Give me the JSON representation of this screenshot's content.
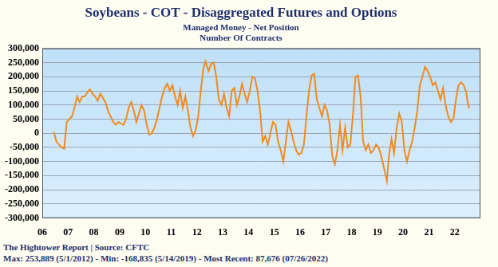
{
  "chart_data": {
    "type": "line",
    "title": "Soybeans - COT - Disaggregated Futures and Options",
    "subtitle": [
      "Managed Money - Net Position",
      "Number Of Contracts"
    ],
    "footer": [
      "The Hightower Report | Source: CFTC",
      "Max: 253,889 (5/1/2012) - Min: -168,835 (5/14/2019) - Most Recent: 87,676 (07/26/2022)"
    ],
    "color": "#f28a1e",
    "grid": true,
    "x": [
      2006.45,
      2006.55,
      2006.65,
      2006.75,
      2006.85,
      2006.95,
      2007.05,
      2007.15,
      2007.25,
      2007.35,
      2007.45,
      2007.55,
      2007.65,
      2007.75,
      2007.85,
      2007.95,
      2008.05,
      2008.15,
      2008.25,
      2008.35,
      2008.45,
      2008.55,
      2008.65,
      2008.75,
      2008.85,
      2008.95,
      2009.05,
      2009.15,
      2009.25,
      2009.35,
      2009.45,
      2009.55,
      2009.65,
      2009.75,
      2009.85,
      2009.95,
      2010.05,
      2010.15,
      2010.25,
      2010.35,
      2010.45,
      2010.55,
      2010.65,
      2010.75,
      2010.85,
      2010.95,
      2011.05,
      2011.15,
      2011.25,
      2011.35,
      2011.45,
      2011.55,
      2011.65,
      2011.75,
      2011.85,
      2011.95,
      2012.05,
      2012.15,
      2012.25,
      2012.33,
      2012.45,
      2012.55,
      2012.65,
      2012.75,
      2012.85,
      2012.95,
      2013.05,
      2013.15,
      2013.25,
      2013.35,
      2013.45,
      2013.55,
      2013.65,
      2013.75,
      2013.85,
      2013.95,
      2014.05,
      2014.15,
      2014.25,
      2014.35,
      2014.45,
      2014.55,
      2014.65,
      2014.75,
      2014.85,
      2014.95,
      2015.05,
      2015.15,
      2015.25,
      2015.35,
      2015.45,
      2015.55,
      2015.65,
      2015.75,
      2015.85,
      2015.95,
      2016.05,
      2016.15,
      2016.25,
      2016.35,
      2016.45,
      2016.55,
      2016.65,
      2016.75,
      2016.85,
      2016.95,
      2017.05,
      2017.15,
      2017.25,
      2017.35,
      2017.45,
      2017.55,
      2017.65,
      2017.75,
      2017.85,
      2017.95,
      2018.05,
      2018.15,
      2018.25,
      2018.35,
      2018.45,
      2018.55,
      2018.65,
      2018.75,
      2018.85,
      2018.95,
      2019.05,
      2019.15,
      2019.25,
      2019.37,
      2019.45,
      2019.55,
      2019.65,
      2019.75,
      2019.85,
      2019.95,
      2020.05,
      2020.15,
      2020.25,
      2020.35,
      2020.45,
      2020.55,
      2020.65,
      2020.75,
      2020.85,
      2020.95,
      2021.05,
      2021.15,
      2021.25,
      2021.35,
      2021.45,
      2021.55,
      2021.65,
      2021.75,
      2021.85,
      2021.95,
      2022.05,
      2022.15,
      2022.25,
      2022.35,
      2022.45,
      2022.52,
      2022.57
    ],
    "values": [
      5000,
      -30000,
      -40000,
      -50000,
      -55000,
      40000,
      50000,
      60000,
      90000,
      130000,
      110000,
      130000,
      130000,
      145000,
      155000,
      140000,
      130000,
      115000,
      140000,
      125000,
      110000,
      80000,
      60000,
      40000,
      30000,
      40000,
      35000,
      30000,
      50000,
      90000,
      110000,
      80000,
      40000,
      70000,
      100000,
      80000,
      30000,
      -5000,
      0,
      20000,
      50000,
      90000,
      130000,
      160000,
      175000,
      150000,
      170000,
      130000,
      100000,
      150000,
      90000,
      130000,
      80000,
      20000,
      -10000,
      10000,
      60000,
      150000,
      230000,
      253889,
      220000,
      245000,
      250000,
      200000,
      120000,
      100000,
      140000,
      90000,
      60000,
      150000,
      160000,
      100000,
      130000,
      175000,
      140000,
      110000,
      150000,
      200000,
      195000,
      150000,
      80000,
      -30000,
      -10000,
      -40000,
      0,
      40000,
      30000,
      -30000,
      -60000,
      -100000,
      -30000,
      40000,
      10000,
      -30000,
      -60000,
      -75000,
      -70000,
      -40000,
      60000,
      150000,
      205000,
      210000,
      120000,
      90000,
      60000,
      100000,
      80000,
      30000,
      -80000,
      -110000,
      -60000,
      30000,
      -60000,
      20000,
      -50000,
      -40000,
      60000,
      200000,
      205000,
      130000,
      -30000,
      -60000,
      -40000,
      -70000,
      -60000,
      -40000,
      -50000,
      -80000,
      -120000,
      -168835,
      -80000,
      -20000,
      -70000,
      20000,
      70000,
      40000,
      -60000,
      -100000,
      -60000,
      -30000,
      20000,
      80000,
      170000,
      200000,
      235000,
      220000,
      200000,
      170000,
      180000,
      150000,
      120000,
      160000,
      100000,
      60000,
      40000,
      50000,
      120000,
      170000,
      180000,
      170000,
      145000,
      100000,
      87676
    ],
    "xlim": [
      2006,
      2023
    ],
    "xticks": [
      {
        "value": 2006,
        "label": "06"
      },
      {
        "value": 2007,
        "label": "07"
      },
      {
        "value": 2008,
        "label": "08"
      },
      {
        "value": 2009,
        "label": "09"
      },
      {
        "value": 2010,
        "label": "10"
      },
      {
        "value": 2011,
        "label": "11"
      },
      {
        "value": 2012,
        "label": "12"
      },
      {
        "value": 2013,
        "label": "13"
      },
      {
        "value": 2014,
        "label": "14"
      },
      {
        "value": 2015,
        "label": "15"
      },
      {
        "value": 2016,
        "label": "16"
      },
      {
        "value": 2017,
        "label": "17"
      },
      {
        "value": 2018,
        "label": "18"
      },
      {
        "value": 2019,
        "label": "19"
      },
      {
        "value": 2020,
        "label": "20"
      },
      {
        "value": 2021,
        "label": "21"
      },
      {
        "value": 2022,
        "label": "22"
      }
    ],
    "ylim": [
      -300000,
      300000
    ],
    "yticks": [
      {
        "value": -300000,
        "label": "-300,000"
      },
      {
        "value": -250000,
        "label": "-250,000"
      },
      {
        "value": -200000,
        "label": "-200,000"
      },
      {
        "value": -150000,
        "label": "-150,000"
      },
      {
        "value": -100000,
        "label": "-100,000"
      },
      {
        "value": -50000,
        "label": "-50,000"
      },
      0,
      {
        "value": 50000,
        "label": "50,000"
      },
      {
        "value": 100000,
        "label": "100,000"
      },
      {
        "value": 150000,
        "label": "150,000"
      },
      {
        "value": 200000,
        "label": "200,000"
      },
      {
        "value": 250000,
        "label": "250,000"
      },
      {
        "value": 300000,
        "label": "300,000"
      }
    ]
  }
}
